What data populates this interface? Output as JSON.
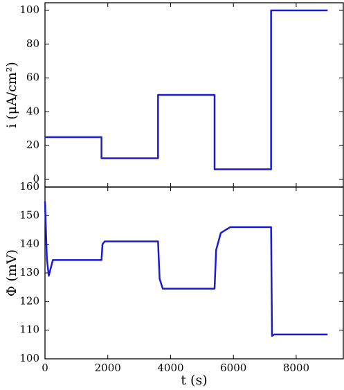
{
  "chart_data": [
    {
      "type": "line",
      "ylabel": "i (μA/cm²)",
      "xlim": [
        0,
        9500
      ],
      "xticks": [
        0,
        2000,
        4000,
        6000,
        8000
      ],
      "ylim": [
        -4.5,
        104.5
      ],
      "yticks": [
        0,
        20,
        40,
        60,
        80,
        100
      ],
      "series": [
        {
          "color": "#1a1ad6",
          "x": [
            0,
            1800,
            1800,
            3600,
            3600,
            5400,
            5400,
            7200,
            7200,
            9000
          ],
          "values": [
            25,
            25,
            12.5,
            12.5,
            50,
            50,
            6,
            6,
            100,
            100
          ]
        }
      ]
    },
    {
      "type": "line",
      "ylabel": "Φ (mV)",
      "xlabel": "t (s)",
      "xlim": [
        0,
        9500
      ],
      "xticks": [
        0,
        2000,
        4000,
        6000,
        8000
      ],
      "ylim": [
        100,
        160
      ],
      "yticks": [
        100,
        110,
        120,
        130,
        140,
        150,
        160
      ],
      "series": [
        {
          "color": "#1a1ad6",
          "x": [
            0,
            60,
            120,
            250,
            1800,
            1830,
            1900,
            3600,
            3650,
            3750,
            5400,
            5450,
            5600,
            5900,
            7200,
            7230,
            7300,
            9000
          ],
          "values": [
            155,
            135,
            129,
            134.5,
            134.5,
            140,
            141,
            141,
            128,
            124.5,
            124.5,
            138,
            144,
            146,
            146,
            108,
            108.5,
            108.5
          ]
        }
      ]
    }
  ]
}
